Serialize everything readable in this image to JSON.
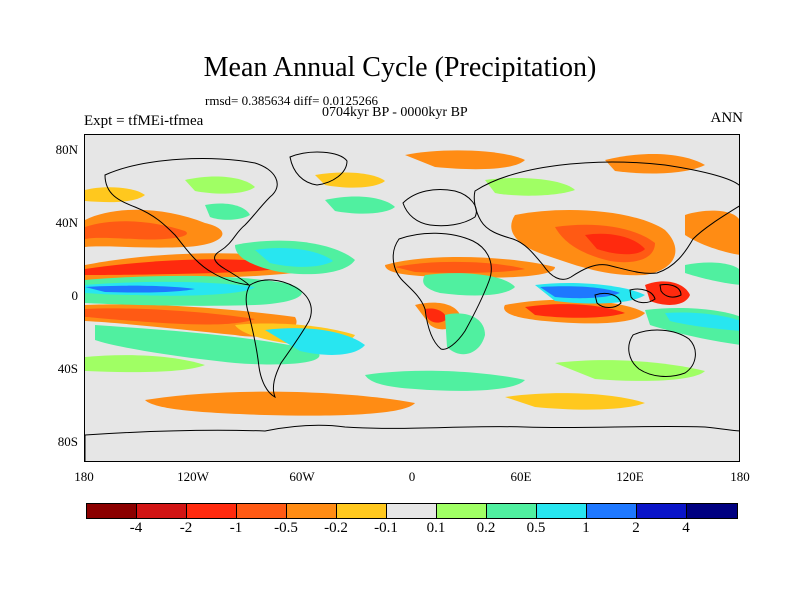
{
  "title": "Mean Annual Cycle (Precipitation)",
  "stats_text": "rmsd= 0.385634 diff= 0.0125266",
  "period_text": "0704kyr BP - 0000kyr BP",
  "experiment_text": "Expt = tfMEi-tfmea",
  "season_text": "ANN",
  "latitude_labels": [
    "80N",
    "40N",
    "0",
    "40S",
    "80S"
  ],
  "longitude_labels": [
    "180",
    "120W",
    "60W",
    "0",
    "60E",
    "120E",
    "180"
  ],
  "colorbar": {
    "labels": [
      "-4",
      "-2",
      "-1",
      "-0.5",
      "-0.2",
      "-0.1",
      "0.1",
      "0.2",
      "0.5",
      "1",
      "2",
      "4"
    ],
    "colors": [
      "#8b0000",
      "#d21414",
      "#ff2a0e",
      "#ff5a14",
      "#ff8c14",
      "#ffc81e",
      "#e6e6e6",
      "#a0ff64",
      "#50f0a0",
      "#28e6f0",
      "#1e78ff",
      "#0a14c8",
      "#000080"
    ]
  }
}
